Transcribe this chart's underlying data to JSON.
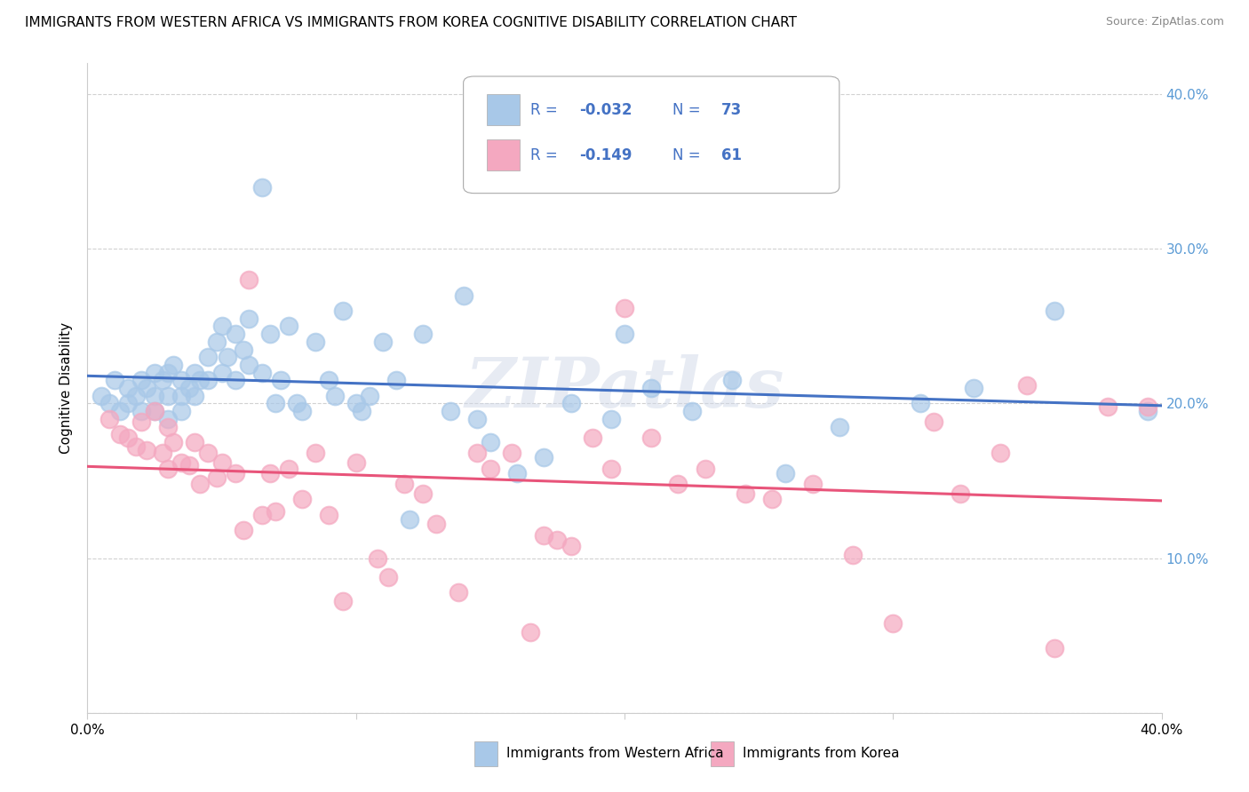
{
  "title": "IMMIGRANTS FROM WESTERN AFRICA VS IMMIGRANTS FROM KOREA COGNITIVE DISABILITY CORRELATION CHART",
  "source": "Source: ZipAtlas.com",
  "ylabel": "Cognitive Disability",
  "xlim": [
    0.0,
    0.4
  ],
  "ylim": [
    0.0,
    0.42
  ],
  "blue_R": "-0.032",
  "blue_N": "73",
  "pink_R": "-0.149",
  "pink_N": "61",
  "blue_color": "#A8C8E8",
  "pink_color": "#F4A8C0",
  "blue_line_color": "#4472C4",
  "pink_line_color": "#E8547A",
  "legend_text_color": "#4472C4",
  "right_axis_color": "#5B9BD5",
  "watermark": "ZIPatlas",
  "blue_label": "Immigrants from Western Africa",
  "pink_label": "Immigrants from Korea",
  "blue_scatter_x": [
    0.005,
    0.008,
    0.01,
    0.012,
    0.015,
    0.015,
    0.018,
    0.02,
    0.02,
    0.022,
    0.025,
    0.025,
    0.025,
    0.028,
    0.03,
    0.03,
    0.03,
    0.032,
    0.035,
    0.035,
    0.035,
    0.038,
    0.04,
    0.04,
    0.042,
    0.045,
    0.045,
    0.048,
    0.05,
    0.05,
    0.052,
    0.055,
    0.055,
    0.058,
    0.06,
    0.06,
    0.065,
    0.065,
    0.068,
    0.07,
    0.072,
    0.075,
    0.078,
    0.08,
    0.085,
    0.09,
    0.092,
    0.095,
    0.1,
    0.102,
    0.105,
    0.11,
    0.115,
    0.12,
    0.125,
    0.135,
    0.14,
    0.145,
    0.15,
    0.16,
    0.17,
    0.18,
    0.195,
    0.2,
    0.21,
    0.225,
    0.24,
    0.26,
    0.28,
    0.31,
    0.33,
    0.36,
    0.395
  ],
  "blue_scatter_y": [
    0.205,
    0.2,
    0.215,
    0.195,
    0.21,
    0.2,
    0.205,
    0.215,
    0.195,
    0.21,
    0.22,
    0.205,
    0.195,
    0.215,
    0.22,
    0.205,
    0.19,
    0.225,
    0.215,
    0.205,
    0.195,
    0.21,
    0.22,
    0.205,
    0.215,
    0.23,
    0.215,
    0.24,
    0.25,
    0.22,
    0.23,
    0.245,
    0.215,
    0.235,
    0.255,
    0.225,
    0.34,
    0.22,
    0.245,
    0.2,
    0.215,
    0.25,
    0.2,
    0.195,
    0.24,
    0.215,
    0.205,
    0.26,
    0.2,
    0.195,
    0.205,
    0.24,
    0.215,
    0.125,
    0.245,
    0.195,
    0.27,
    0.19,
    0.175,
    0.155,
    0.165,
    0.2,
    0.19,
    0.245,
    0.21,
    0.195,
    0.215,
    0.155,
    0.185,
    0.2,
    0.21,
    0.26,
    0.195
  ],
  "pink_scatter_x": [
    0.008,
    0.012,
    0.015,
    0.018,
    0.02,
    0.022,
    0.025,
    0.028,
    0.03,
    0.03,
    0.032,
    0.035,
    0.038,
    0.04,
    0.042,
    0.045,
    0.048,
    0.05,
    0.055,
    0.058,
    0.06,
    0.065,
    0.068,
    0.07,
    0.075,
    0.08,
    0.085,
    0.09,
    0.095,
    0.1,
    0.108,
    0.112,
    0.118,
    0.125,
    0.13,
    0.138,
    0.145,
    0.15,
    0.158,
    0.165,
    0.17,
    0.175,
    0.18,
    0.188,
    0.195,
    0.2,
    0.21,
    0.22,
    0.23,
    0.245,
    0.255,
    0.27,
    0.285,
    0.3,
    0.315,
    0.325,
    0.34,
    0.35,
    0.36,
    0.38,
    0.395
  ],
  "pink_scatter_y": [
    0.19,
    0.18,
    0.178,
    0.172,
    0.188,
    0.17,
    0.195,
    0.168,
    0.185,
    0.158,
    0.175,
    0.162,
    0.16,
    0.175,
    0.148,
    0.168,
    0.152,
    0.162,
    0.155,
    0.118,
    0.28,
    0.128,
    0.155,
    0.13,
    0.158,
    0.138,
    0.168,
    0.128,
    0.072,
    0.162,
    0.1,
    0.088,
    0.148,
    0.142,
    0.122,
    0.078,
    0.168,
    0.158,
    0.168,
    0.052,
    0.115,
    0.112,
    0.108,
    0.178,
    0.158,
    0.262,
    0.178,
    0.148,
    0.158,
    0.142,
    0.138,
    0.148,
    0.102,
    0.058,
    0.188,
    0.142,
    0.168,
    0.212,
    0.042,
    0.198,
    0.198
  ]
}
